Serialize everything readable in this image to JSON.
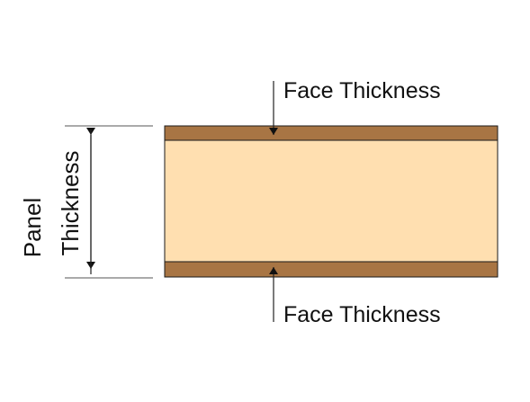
{
  "labels": {
    "top_face": "Face Thickness",
    "bottom_face": "Face Thickness",
    "panel_line1": "Panel",
    "panel_line2": "Thickness"
  },
  "colors": {
    "face_sheet": "#A87544",
    "core": "#FFDFB0",
    "outline": "#1a1a1a",
    "dimension_line": "#222222",
    "extension_line": "#555555"
  },
  "components": [
    "top-face-sheet",
    "core",
    "bottom-face-sheet"
  ]
}
